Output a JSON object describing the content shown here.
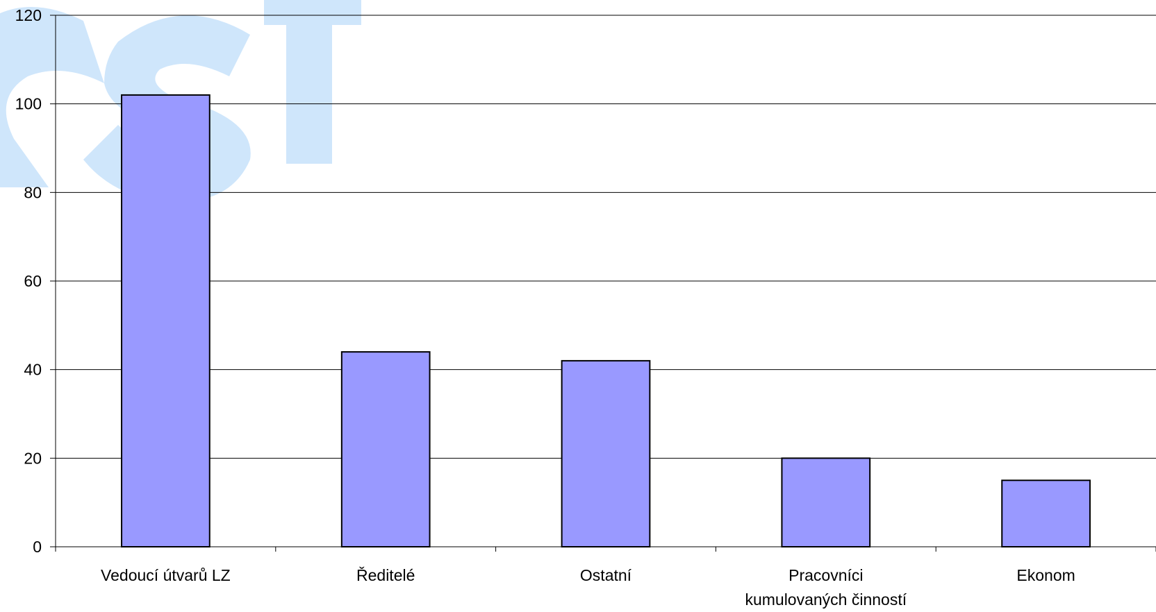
{
  "chart_data": {
    "type": "bar",
    "categories": [
      [
        "Vedoucí útvarů LZ"
      ],
      [
        "Ředitelé"
      ],
      [
        "Ostatní"
      ],
      [
        "Pracovníci",
        "kumulovaných činností"
      ],
      [
        "Ekonom"
      ]
    ],
    "values": [
      102,
      44,
      42,
      20,
      15
    ],
    "ylim": [
      0,
      120
    ],
    "yticks": [
      0,
      20,
      40,
      60,
      80,
      100,
      120
    ],
    "grid": true,
    "legend": "none",
    "colors": {
      "bar_fill": "#9999ff",
      "bar_stroke": "#000000",
      "grid": "#000000",
      "watermark": "#cfe6fb"
    }
  }
}
